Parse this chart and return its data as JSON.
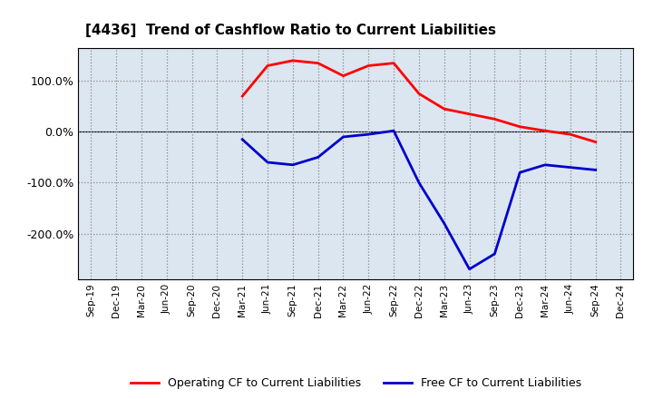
{
  "title": "[4436]  Trend of Cashflow Ratio to Current Liabilities",
  "x_labels": [
    "Sep-19",
    "Dec-19",
    "Mar-20",
    "Jun-20",
    "Sep-20",
    "Dec-20",
    "Mar-21",
    "Jun-21",
    "Sep-21",
    "Dec-21",
    "Mar-22",
    "Jun-22",
    "Sep-22",
    "Dec-22",
    "Mar-23",
    "Jun-23",
    "Sep-23",
    "Dec-23",
    "Mar-24",
    "Jun-24",
    "Sep-24",
    "Dec-24"
  ],
  "operating_cf": [
    null,
    null,
    null,
    null,
    null,
    null,
    70,
    130,
    140,
    135,
    110,
    130,
    135,
    75,
    45,
    35,
    25,
    10,
    2,
    -5,
    -20,
    null
  ],
  "free_cf": [
    null,
    null,
    null,
    null,
    null,
    null,
    -15,
    -60,
    -65,
    -50,
    -10,
    -5,
    2,
    -100,
    -180,
    -270,
    -240,
    -80,
    -65,
    -70,
    -75,
    null
  ],
  "operating_color": "#ff0000",
  "free_color": "#0000cc",
  "background_color": "#ffffff",
  "plot_bg_color": "#dce6f1",
  "grid_color": "#aaaaaa",
  "ylim": [
    -290,
    165
  ],
  "yticks": [
    100,
    0,
    -100,
    -200
  ],
  "ytick_labels": [
    "100.0%",
    "0.0%",
    "-100.0%",
    "-200.0%"
  ],
  "legend_labels": [
    "Operating CF to Current Liabilities",
    "Free CF to Current Liabilities"
  ]
}
